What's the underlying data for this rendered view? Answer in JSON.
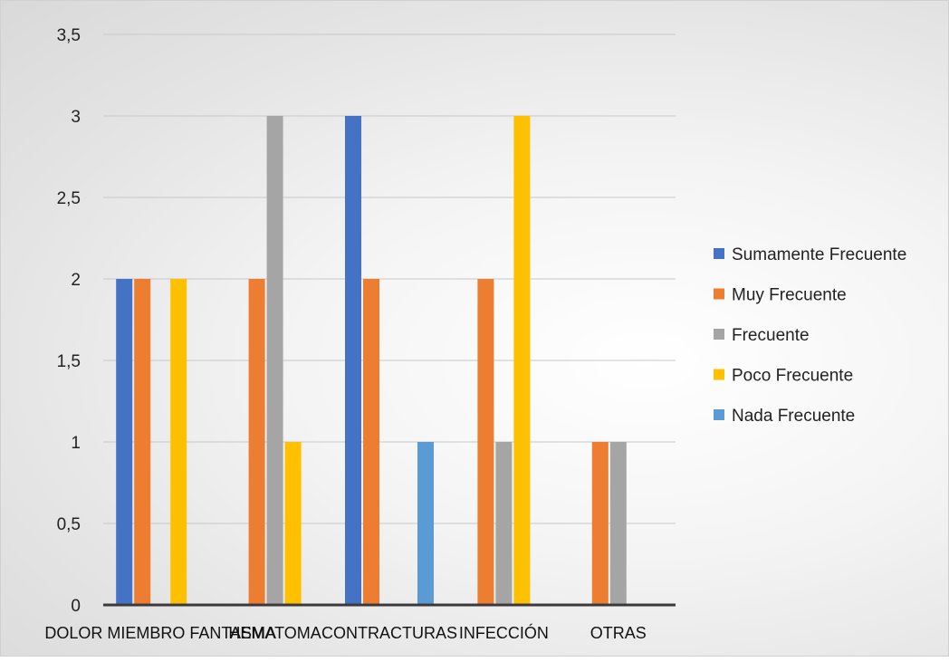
{
  "chart_data": {
    "type": "bar",
    "categories": [
      "DOLOR MIEMBRO FANTASMA",
      "HEMATOMA",
      "CONTRACTURAS",
      "INFECCIÓN",
      "OTRAS"
    ],
    "series": [
      {
        "name": "Sumamente Frecuente",
        "color": "#4472C4",
        "values": [
          2,
          0,
          3,
          0,
          0
        ]
      },
      {
        "name": "Muy Frecuente",
        "color": "#ED7D31",
        "values": [
          2,
          2,
          2,
          2,
          1
        ]
      },
      {
        "name": "Frecuente",
        "color": "#A5A5A5",
        "values": [
          0,
          3,
          0,
          1,
          1
        ]
      },
      {
        "name": "Poco Frecuente",
        "color": "#FFC000",
        "values": [
          2,
          1,
          0,
          3,
          0
        ]
      },
      {
        "name": "Nada Frecuente",
        "color": "#5B9BD5",
        "values": [
          0,
          0,
          1,
          0,
          0
        ]
      }
    ],
    "y_ticks": [
      "0",
      "0,5",
      "1",
      "1,5",
      "2",
      "2,5",
      "3",
      "3,5"
    ],
    "ylim": [
      0,
      3.5
    ],
    "legend_position": "right",
    "grid": true
  }
}
